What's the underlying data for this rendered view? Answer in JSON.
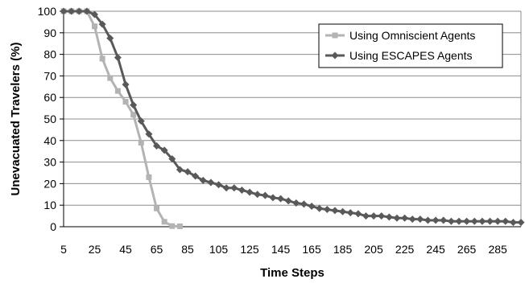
{
  "chart_data": {
    "type": "line",
    "xlabel": "Time Steps",
    "ylabel": "Unevacuated Travelers (%)",
    "xlim": [
      5,
      300
    ],
    "ylim": [
      0,
      100
    ],
    "xticks": [
      5,
      25,
      45,
      65,
      85,
      105,
      125,
      145,
      165,
      185,
      205,
      225,
      245,
      265,
      285
    ],
    "yticks": [
      0,
      10,
      20,
      30,
      40,
      50,
      60,
      70,
      80,
      90,
      100
    ],
    "grid": true,
    "legend_position": "top-right",
    "series": [
      {
        "name": "Using Omniscient Agents",
        "color": "#b3b3b3",
        "marker": "square",
        "x": [
          5,
          10,
          15,
          20,
          25,
          30,
          35,
          40,
          45,
          50,
          55,
          60,
          65,
          70,
          75,
          80
        ],
        "y": [
          100,
          100,
          100,
          100,
          93,
          78,
          69,
          63,
          58,
          52,
          39,
          23,
          8.5,
          2.3,
          0.3,
          0.2
        ]
      },
      {
        "name": "Using ESCAPES Agents",
        "color": "#595959",
        "marker": "diamond",
        "x": [
          5,
          10,
          15,
          20,
          25,
          30,
          35,
          40,
          45,
          50,
          55,
          60,
          65,
          70,
          75,
          80,
          85,
          90,
          95,
          100,
          105,
          110,
          115,
          120,
          125,
          130,
          135,
          140,
          145,
          150,
          155,
          160,
          165,
          170,
          175,
          180,
          185,
          190,
          195,
          200,
          205,
          210,
          215,
          220,
          225,
          230,
          235,
          240,
          245,
          250,
          255,
          260,
          265,
          270,
          275,
          280,
          285,
          290,
          295,
          300
        ],
        "y": [
          100,
          100,
          100,
          100,
          98.5,
          94,
          87.5,
          78.5,
          66,
          56.5,
          49,
          43,
          37.5,
          35.5,
          31.5,
          26.5,
          25.5,
          23.5,
          21.5,
          20.5,
          19.5,
          18,
          18,
          17,
          16,
          15,
          14.5,
          13.5,
          13,
          12,
          11,
          10.5,
          9.5,
          8.5,
          8,
          7.5,
          7,
          6.5,
          6,
          5,
          5,
          5,
          4.5,
          4,
          4,
          3.5,
          3.5,
          3,
          3,
          3,
          2.5,
          2.5,
          2.5,
          2.5,
          2.5,
          2.5,
          2.5,
          2.5,
          2,
          2
        ]
      }
    ]
  }
}
